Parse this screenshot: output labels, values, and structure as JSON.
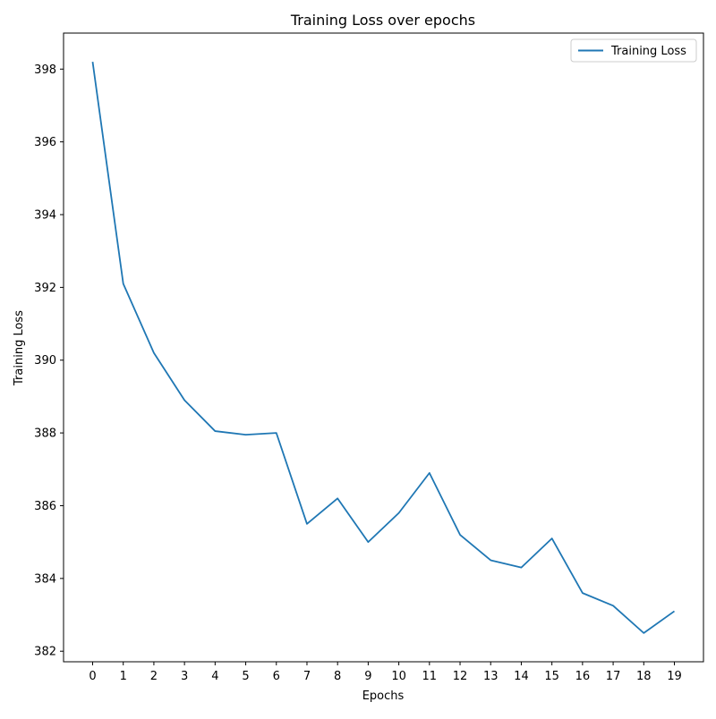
{
  "chart_data": {
    "type": "line",
    "title": "Training Loss over epochs",
    "xlabel": "Epochs",
    "ylabel": "Training Loss",
    "x": [
      0,
      1,
      2,
      3,
      4,
      5,
      6,
      7,
      8,
      9,
      10,
      11,
      12,
      13,
      14,
      15,
      16,
      17,
      18,
      19
    ],
    "series": [
      {
        "name": "Training Loss",
        "color": "#1f77b4",
        "values": [
          398.2,
          392.1,
          390.2,
          388.9,
          388.05,
          387.95,
          388.0,
          385.5,
          386.2,
          385.0,
          385.8,
          386.9,
          385.2,
          384.5,
          384.3,
          385.1,
          383.6,
          383.25,
          382.5,
          383.1
        ]
      }
    ],
    "xticks": [
      "0",
      "1",
      "2",
      "3",
      "4",
      "5",
      "6",
      "7",
      "8",
      "9",
      "10",
      "11",
      "12",
      "13",
      "14",
      "15",
      "16",
      "17",
      "18",
      "19"
    ],
    "yticks": [
      382,
      384,
      386,
      388,
      390,
      392,
      394,
      396,
      398
    ],
    "xlim": [
      -0.95,
      19.95
    ],
    "ylim": [
      381.71,
      398.99
    ],
    "grid": false,
    "legend": "top-right"
  }
}
